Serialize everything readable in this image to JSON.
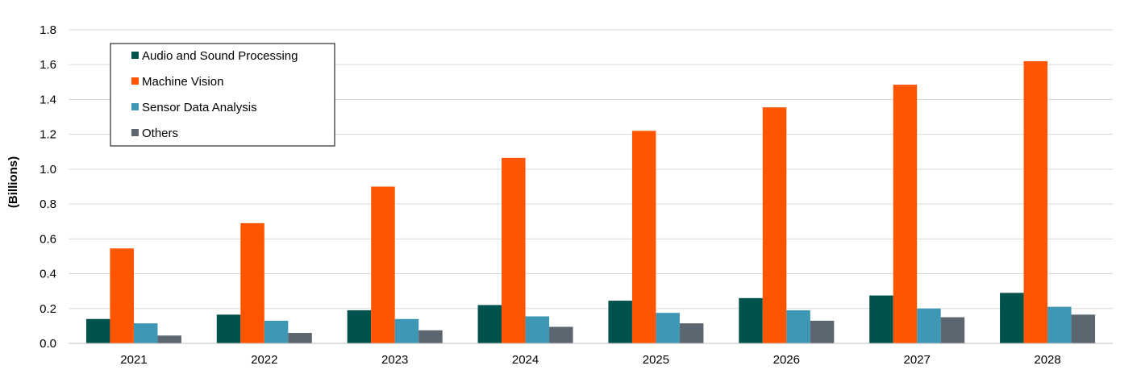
{
  "chart_data": {
    "type": "bar",
    "title": "",
    "xlabel": "",
    "ylabel": "(Billions)",
    "categories": [
      "2021",
      "2022",
      "2023",
      "2024",
      "2025",
      "2026",
      "2027",
      "2028"
    ],
    "series": [
      {
        "name": "Audio and Sound Processing",
        "color": "#00524C",
        "values": [
          0.14,
          0.165,
          0.19,
          0.22,
          0.245,
          0.26,
          0.275,
          0.29
        ]
      },
      {
        "name": "Machine Vision",
        "color": "#FF5500",
        "values": [
          0.545,
          0.69,
          0.9,
          1.065,
          1.22,
          1.355,
          1.485,
          1.62
        ]
      },
      {
        "name": "Sensor Data Analysis",
        "color": "#3E98B5",
        "values": [
          0.115,
          0.13,
          0.14,
          0.155,
          0.175,
          0.19,
          0.2,
          0.21
        ]
      },
      {
        "name": "Others",
        "color": "#5C6670",
        "values": [
          0.045,
          0.06,
          0.075,
          0.095,
          0.115,
          0.13,
          0.15,
          0.165
        ]
      }
    ],
    "ylim": [
      0,
      1.8
    ],
    "yticks": [
      "0.0",
      "0.2",
      "0.4",
      "0.6",
      "0.8",
      "1.0",
      "1.2",
      "1.4",
      "1.6",
      "1.8"
    ],
    "grid": true,
    "legend_position": "top-left"
  }
}
